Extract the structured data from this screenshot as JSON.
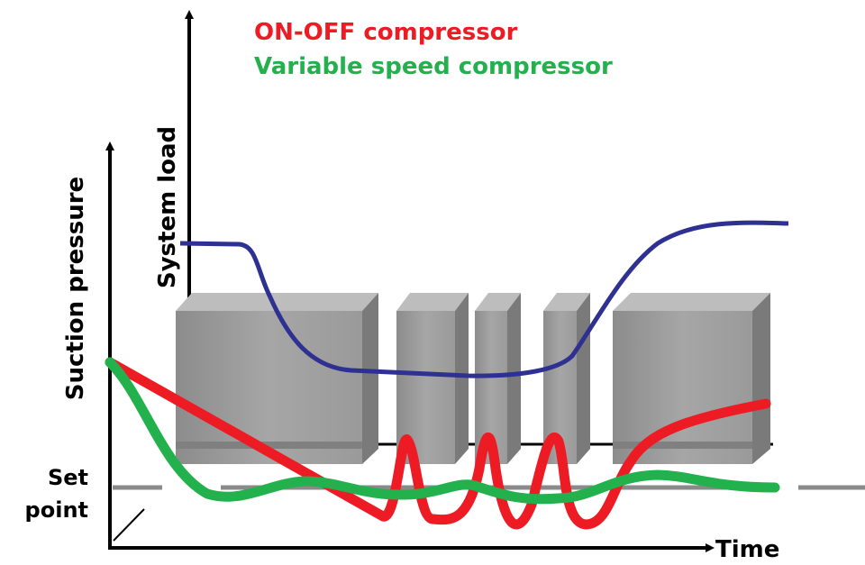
{
  "legend": {
    "on_off": "ON-OFF compressor",
    "variable_speed": "Variable speed compressor"
  },
  "axes": {
    "system_load": "System load",
    "suction_pressure": "Suction pressure",
    "time": "Time"
  },
  "set_point": {
    "line1": "Set",
    "line2": "point"
  }
}
